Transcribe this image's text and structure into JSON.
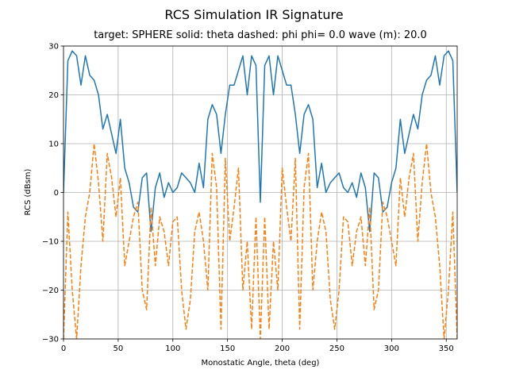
{
  "chart_data": {
    "type": "line",
    "title": "RCS Simulation IR Signature",
    "subtitle": "target: SPHERE   solid: theta     dashed: phi     phi= 0.0    wave (m): 20.0",
    "x_label": "Monostatic Angle, theta (deg)",
    "y_label": "RCS (dBsm)",
    "x": [
      0,
      4,
      8,
      12,
      16,
      20,
      24,
      28,
      32,
      36,
      40,
      44,
      48,
      52,
      56,
      60,
      64,
      68,
      72,
      76,
      80,
      84,
      88,
      92,
      96,
      100,
      104,
      108,
      112,
      116,
      120,
      124,
      128,
      132,
      136,
      140,
      144,
      148,
      152,
      156,
      160,
      164,
      168,
      172,
      176,
      180,
      184,
      188,
      192,
      196,
      200,
      204,
      208,
      212,
      216,
      220,
      224,
      228,
      232,
      236,
      240,
      244,
      248,
      252,
      256,
      260,
      264,
      268,
      272,
      276,
      280,
      284,
      288,
      292,
      296,
      300,
      304,
      308,
      312,
      316,
      320,
      324,
      328,
      332,
      336,
      340,
      344,
      348,
      352,
      356,
      360
    ],
    "series": [
      {
        "color": "#1f77b4",
        "dash": "solid",
        "values": [
          0,
          27,
          29,
          28,
          22,
          28,
          24,
          23,
          20,
          13,
          16,
          12,
          8,
          15,
          5,
          2,
          -3,
          -4,
          3,
          4,
          -8,
          1,
          4,
          -1,
          2,
          0,
          1,
          4,
          3,
          2,
          0,
          6,
          1,
          15,
          18,
          16,
          8,
          16,
          22,
          22,
          25,
          28,
          20,
          28,
          26,
          -2,
          26,
          28,
          20,
          28,
          25,
          22,
          22,
          16,
          8,
          16,
          18,
          15,
          1,
          6,
          0,
          2,
          3,
          4,
          1,
          0,
          2,
          -1,
          4,
          1,
          -8,
          4,
          3,
          -4,
          -3,
          2,
          5,
          15,
          8,
          12,
          16,
          13,
          20,
          23,
          24,
          28,
          22,
          28,
          29,
          27,
          0
        ]
      },
      {
        "color": "#ff7f0e",
        "dash": "dashed",
        "values": [
          -30,
          -4,
          -20,
          -30,
          -15,
          -5,
          0,
          10,
          2,
          -10,
          8,
          3,
          -5,
          3,
          -15,
          -10,
          -5,
          -2,
          -20,
          -24,
          -3,
          -15,
          -5,
          -8,
          -15,
          -6,
          -5,
          -20,
          -28,
          -22,
          -8,
          -4,
          -10,
          -20,
          8,
          1,
          -28,
          7,
          -10,
          -3,
          5,
          -20,
          -10,
          -28,
          -5,
          -30,
          -5,
          -28,
          -10,
          -20,
          5,
          -3,
          -10,
          7,
          -28,
          1,
          8,
          -20,
          -10,
          -4,
          -8,
          -22,
          -28,
          -20,
          -5,
          -6,
          -15,
          -8,
          -5,
          -15,
          -3,
          -24,
          -20,
          -2,
          -5,
          -10,
          -15,
          3,
          -5,
          3,
          8,
          -10,
          2,
          10,
          0,
          -5,
          -15,
          -30,
          -20,
          -4,
          -30
        ]
      }
    ],
    "xlim": [
      0,
      360
    ],
    "ylim": [
      -30,
      30
    ],
    "xticks": [
      0,
      50,
      100,
      150,
      200,
      250,
      300,
      350
    ],
    "yticks": [
      {
        "value": -30,
        "label": "−30"
      },
      {
        "value": -20,
        "label": "−20"
      },
      {
        "value": -10,
        "label": "−10"
      },
      0,
      10,
      20,
      30
    ],
    "grid": true
  }
}
